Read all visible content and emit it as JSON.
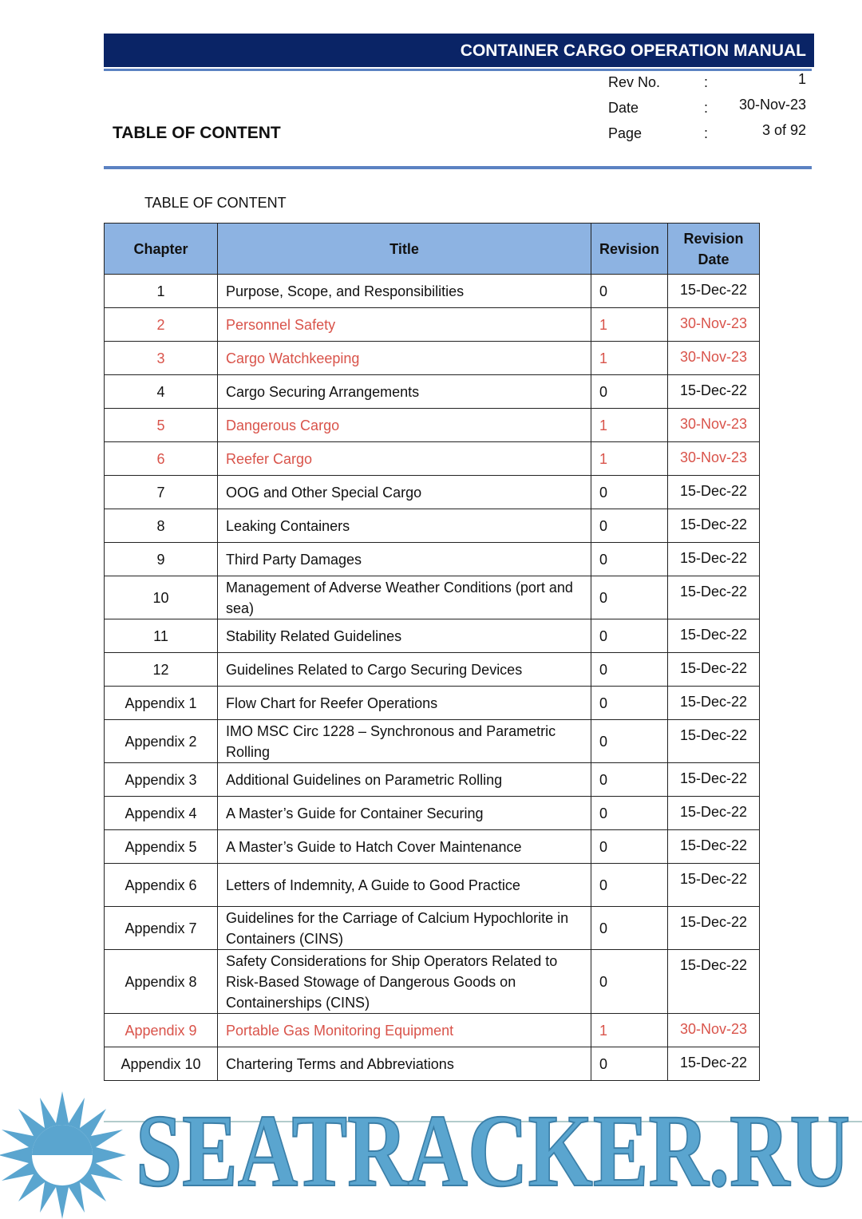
{
  "header": {
    "title": "CONTAINER CARGO OPERATION MANUAL",
    "meta": [
      [
        "Rev No.",
        ":",
        "1"
      ],
      [
        "Date",
        ":",
        "30-Nov-23"
      ],
      [
        "Page",
        ":",
        "3 of 92"
      ]
    ],
    "section": "TABLE OF CONTENT"
  },
  "caption": "TABLE OF CONTENT",
  "table": {
    "columns": [
      "Chapter",
      "Title",
      "Revision",
      "Revision Date"
    ],
    "rows": [
      {
        "cells": [
          "1",
          "Purpose, Scope, and Responsibilities",
          "0",
          "15-Dec-22"
        ]
      },
      {
        "cells": [
          "2",
          "Personnel Safety",
          "1",
          "30-Nov-23"
        ],
        "color": "#d9534a"
      },
      {
        "cells": [
          "3",
          "Cargo Watchkeeping",
          "1",
          "30-Nov-23"
        ],
        "color": "#d9534a"
      },
      {
        "cells": [
          "4",
          "Cargo Securing Arrangements",
          "0",
          "15-Dec-22"
        ]
      },
      {
        "cells": [
          "5",
          "Dangerous Cargo",
          "1",
          "30-Nov-23"
        ],
        "color": "#d9534a"
      },
      {
        "cells": [
          "6",
          "Reefer Cargo",
          "1",
          "30-Nov-23"
        ],
        "color": "#d9534a"
      },
      {
        "cells": [
          "7",
          "OOG and Other Special Cargo",
          "0",
          "15-Dec-22"
        ]
      },
      {
        "cells": [
          "8",
          "Leaking Containers",
          "0",
          "15-Dec-22"
        ]
      },
      {
        "cells": [
          "9",
          "Third Party Damages",
          "0",
          "15-Dec-22"
        ]
      },
      {
        "cells": [
          "10",
          "Management of Adverse Weather Conditions (port and sea)",
          "0",
          "15-Dec-22"
        ]
      },
      {
        "cells": [
          "11",
          "Stability Related Guidelines",
          "0",
          "15-Dec-22"
        ]
      },
      {
        "cells": [
          "12",
          "Guidelines Related to Cargo Securing Devices",
          "0",
          "15-Dec-22"
        ]
      },
      {
        "cells": [
          "Appendix 1",
          "Flow Chart for Reefer Operations",
          "0",
          "15-Dec-22"
        ]
      },
      {
        "cells": [
          "Appendix 2",
          "IMO MSC Circ 1228 – Synchronous and Parametric Rolling",
          "0",
          "15-Dec-22"
        ]
      },
      {
        "cells": [
          "Appendix 3",
          "Additional Guidelines on Parametric Rolling",
          "0",
          "15-Dec-22"
        ]
      },
      {
        "cells": [
          "Appendix 4",
          "A Master’s Guide for Container Securing",
          "0",
          "15-Dec-22"
        ]
      },
      {
        "cells": [
          "Appendix 5",
          "A Master’s Guide to Hatch Cover Maintenance",
          "0",
          "15-Dec-22"
        ]
      },
      {
        "cells": [
          "Appendix 6",
          "Letters of Indemnity, A Guide to Good Practice",
          "0",
          "15-Dec-22"
        ]
      },
      {
        "cells": [
          "Appendix 7",
          "Guidelines for the Carriage of Calcium Hypochlorite in Containers (CINS)",
          "0",
          "15-Dec-22"
        ]
      },
      {
        "cells": [
          "Appendix 8",
          "Safety Considerations for Ship Operators Related to Risk-Based Stowage of Dangerous Goods on Containerships (CINS)",
          "0",
          "15-Dec-22"
        ]
      },
      {
        "cells": [
          "Appendix 9",
          "Portable Gas Monitoring Equipment",
          "1",
          "30-Nov-23"
        ],
        "color": "#d9534a"
      },
      {
        "cells": [
          "Appendix 10",
          "Chartering Terms and Abbreviations",
          "0",
          "15-Dec-22"
        ]
      }
    ]
  },
  "watermark": "SEATRACKER.RU"
}
